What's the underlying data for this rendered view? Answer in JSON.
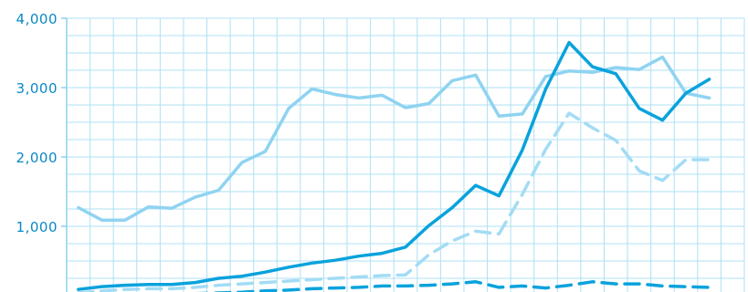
{
  "chart_data": {
    "type": "line",
    "title": "",
    "xlabel": "",
    "ylabel": "",
    "ylim": [
      0,
      4000
    ],
    "y_ticks": [
      {
        "value": 1000,
        "label": "1,000"
      },
      {
        "value": 2000,
        "label": "2,000"
      },
      {
        "value": 3000,
        "label": "3,000"
      },
      {
        "value": 4000,
        "label": "4,000"
      }
    ],
    "grid": true,
    "legend": "none",
    "x": [
      1,
      2,
      3,
      4,
      5,
      6,
      7,
      8,
      9,
      10,
      11,
      12,
      13,
      14,
      15,
      16,
      17,
      18,
      19,
      20,
      21,
      22,
      23,
      24,
      25,
      26,
      27,
      28,
      29
    ],
    "series": [
      {
        "color": "#8fd3f1",
        "style": "solid",
        "values": [
          1270,
          1090,
          1090,
          1280,
          1260,
          1420,
          1520,
          1920,
          2080,
          2700,
          2980,
          2900,
          2850,
          2890,
          2710,
          2770,
          3100,
          3180,
          2590,
          2620,
          3160,
          3240,
          3220,
          3290,
          3260,
          3440,
          2920,
          2850,
          null
        ]
      },
      {
        "color": "#0aa2dc",
        "style": "solid",
        "values": [
          90,
          130,
          150,
          160,
          160,
          190,
          250,
          280,
          340,
          410,
          470,
          510,
          570,
          610,
          700,
          1010,
          1270,
          1590,
          1440,
          2100,
          2980,
          3650,
          3300,
          3200,
          2700,
          2530,
          2920,
          3120,
          null
        ]
      },
      {
        "color": "#a3dcf4",
        "style": "dashed",
        "values": [
          40,
          70,
          90,
          100,
          100,
          120,
          150,
          170,
          190,
          210,
          230,
          250,
          270,
          290,
          300,
          590,
          790,
          930,
          890,
          1460,
          2110,
          2630,
          2420,
          2240,
          1800,
          1660,
          1960,
          1960,
          null
        ]
      },
      {
        "color": "#0aa2dc",
        "style": "dashed",
        "values": [
          10,
          20,
          30,
          30,
          30,
          30,
          40,
          50,
          70,
          80,
          100,
          110,
          120,
          140,
          140,
          150,
          170,
          200,
          120,
          140,
          110,
          150,
          200,
          170,
          170,
          140,
          130,
          120,
          null
        ]
      }
    ]
  }
}
